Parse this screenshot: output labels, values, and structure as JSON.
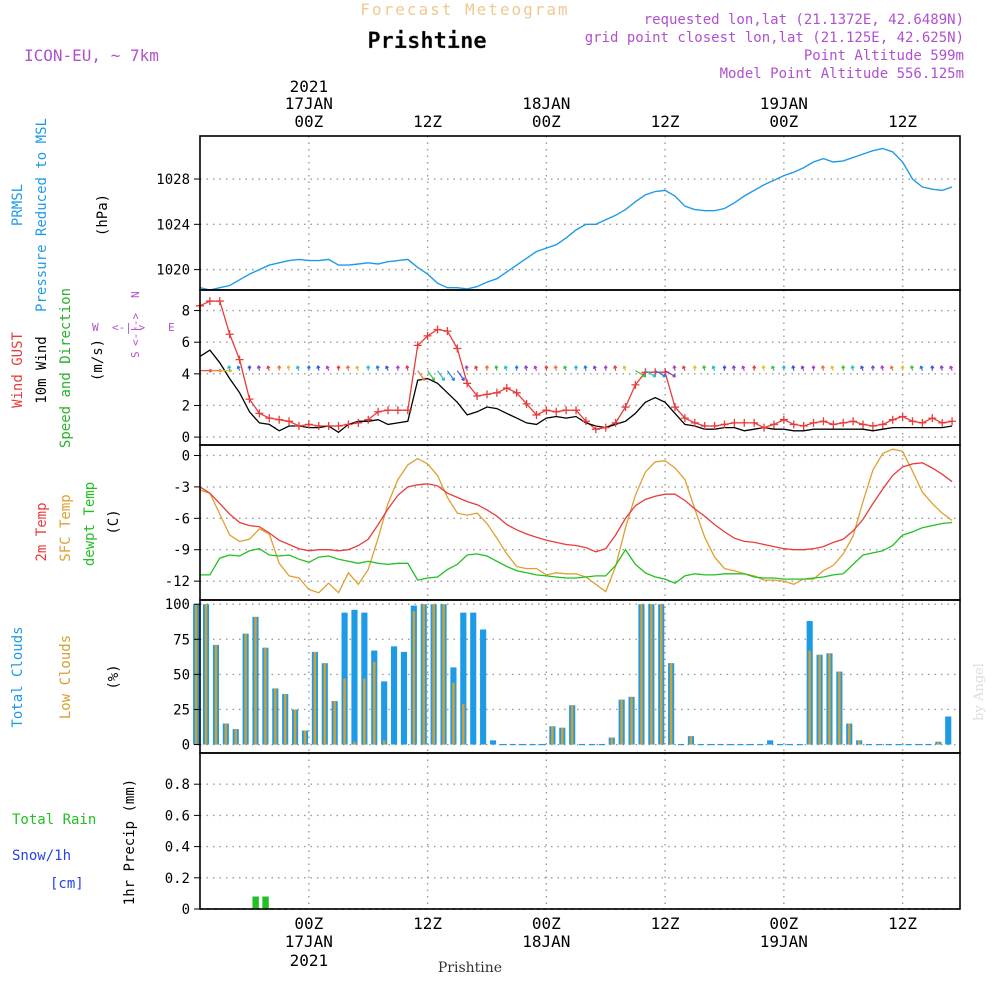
{
  "header": {
    "subtitle": "Forecast Meteogram",
    "title": "Prishtine",
    "model": "ICON-EU, ~ 7km",
    "requested": "requested lon,lat (21.1372E, 42.6489N)",
    "gridpoint": "grid point closest lon,lat (21.125E, 42.625N)",
    "point_alt": "Point Altitude 599m",
    "model_alt": "Model Point Altitude 556.125m",
    "footer_station": "Prishtine",
    "credit": "by Angel"
  },
  "time_axis": {
    "top_labels": [
      {
        "line0": "2021",
        "line1": "17JAN",
        "line2": "00Z",
        "h": 18
      },
      {
        "line0": "",
        "line1": "",
        "line2": "12Z",
        "h": 30
      },
      {
        "line0": "",
        "line1": "18JAN",
        "line2": "00Z",
        "h": 42
      },
      {
        "line0": "",
        "line1": "",
        "line2": "12Z",
        "h": 54
      },
      {
        "line0": "",
        "line1": "19JAN",
        "line2": "00Z",
        "h": 66
      },
      {
        "line0": "",
        "line1": "",
        "line2": "12Z",
        "h": 78
      }
    ],
    "bottom_labels": [
      {
        "line0": "00Z",
        "line1": "17JAN",
        "line2": "2021",
        "h": 18
      },
      {
        "line0": "12Z",
        "line1": "",
        "line2": "",
        "h": 30
      },
      {
        "line0": "00Z",
        "line1": "18JAN",
        "line2": "",
        "h": 42
      },
      {
        "line0": "12Z",
        "line1": "",
        "line2": "",
        "h": 54
      },
      {
        "line0": "00Z",
        "line1": "19JAN",
        "line2": "",
        "h": 66
      },
      {
        "line0": "12Z",
        "line1": "",
        "line2": "",
        "h": 78
      }
    ]
  },
  "colors": {
    "pressure": "#1e9be6",
    "gust": "#e83c3c",
    "wind": "#000000",
    "wind_dir": "#2ab02a",
    "t2m": "#e83c3c",
    "tsfc": "#e0a030",
    "dewpt": "#22c022",
    "total_clouds": "#1e9be6",
    "low_clouds": "#d4a030",
    "rain": "#22c022",
    "snow": "#2244ee",
    "label_purple": "#b050d0"
  },
  "chart_data": [
    {
      "type": "line",
      "panel": "pressure",
      "ylabel_lines": [
        "PRMSL",
        "Pressure Reduced to MSL"
      ],
      "unit": "(hPa)",
      "yticks": [
        1020,
        1024,
        1028
      ],
      "ylim": [
        1018.2,
        1031.8
      ],
      "x_hours": [
        7,
        8,
        9,
        10,
        11,
        12,
        13,
        14,
        15,
        16,
        17,
        18,
        19,
        20,
        21,
        22,
        23,
        24,
        25,
        26,
        27,
        28,
        29,
        30,
        31,
        32,
        33,
        34,
        35,
        36,
        37,
        38,
        39,
        40,
        41,
        42,
        43,
        44,
        45,
        46,
        47,
        48,
        49,
        50,
        51,
        52,
        53,
        54,
        55,
        56,
        57,
        58,
        59,
        60,
        61,
        62,
        63,
        64,
        65,
        66,
        67,
        68,
        69,
        70,
        71,
        72,
        73,
        74,
        75,
        76,
        77,
        78,
        79,
        80,
        81,
        82,
        83
      ],
      "series": [
        {
          "values": [
            1018.4,
            1018.2,
            1018.4,
            1018.6,
            1019.1,
            1019.6,
            1020.0,
            1020.4,
            1020.6,
            1020.8,
            1020.9,
            1020.8,
            1020.8,
            1020.9,
            1020.4,
            1020.4,
            1020.5,
            1020.6,
            1020.5,
            1020.7,
            1020.8,
            1020.9,
            1020.2,
            1019.6,
            1018.8,
            1018.4,
            1018.4,
            1018.3,
            1018.5,
            1018.9,
            1019.2,
            1019.8,
            1020.4,
            1021.0,
            1021.6,
            1021.9,
            1022.2,
            1022.8,
            1023.5,
            1024.0,
            1024.0,
            1024.4,
            1024.8,
            1025.3,
            1026.0,
            1026.6,
            1026.9,
            1027.0,
            1026.5,
            1025.6,
            1025.3,
            1025.2,
            1025.2,
            1025.4,
            1025.9,
            1026.5,
            1027.0,
            1027.5,
            1027.9,
            1028.3,
            1028.6,
            1029.0,
            1029.5,
            1029.8,
            1029.5,
            1029.6,
            1029.9,
            1030.2,
            1030.5,
            1030.7,
            1030.4,
            1029.5,
            1028.0,
            1027.3,
            1027.1,
            1027.0,
            1027.3
          ]
        }
      ]
    },
    {
      "type": "line",
      "panel": "wind",
      "ylabel_lines": [
        "Wind GUST",
        "10m Wind",
        "Speed and Direction"
      ],
      "unit": "(m/s)",
      "compass": {
        "n": "N",
        "e": "E",
        "s": "S",
        "w": "W"
      },
      "yticks": [
        0,
        2,
        4,
        6,
        8
      ],
      "ylim": [
        -0.5,
        9.3
      ],
      "x_hours": [
        7,
        8,
        9,
        10,
        11,
        12,
        13,
        14,
        15,
        16,
        17,
        18,
        19,
        20,
        21,
        22,
        23,
        24,
        25,
        26,
        27,
        28,
        29,
        30,
        31,
        32,
        33,
        34,
        35,
        36,
        37,
        38,
        39,
        40,
        41,
        42,
        43,
        44,
        45,
        46,
        47,
        48,
        49,
        50,
        51,
        52,
        53,
        54,
        55,
        56,
        57,
        58,
        59,
        60,
        61,
        62,
        63,
        64,
        65,
        66,
        67,
        68,
        69,
        70,
        71,
        72,
        73,
        74,
        75,
        76,
        77,
        78,
        79,
        80,
        81,
        82,
        83
      ],
      "series": [
        {
          "name": "Wind GUST",
          "values": [
            8.3,
            8.6,
            8.6,
            6.5,
            4.9,
            2.4,
            1.5,
            1.2,
            1.1,
            1.0,
            0.7,
            0.8,
            0.7,
            0.7,
            0.7,
            0.8,
            0.9,
            1.1,
            1.6,
            1.7,
            1.7,
            1.7,
            5.8,
            6.4,
            6.8,
            6.7,
            5.6,
            3.4,
            2.6,
            2.7,
            2.8,
            3.1,
            2.8,
            2.1,
            1.4,
            1.7,
            1.6,
            1.7,
            1.7,
            1.0,
            0.5,
            0.6,
            0.9,
            1.9,
            3.3,
            4.1,
            4.1,
            4.1,
            1.9,
            1.2,
            0.9,
            0.7,
            0.7,
            0.8,
            0.9,
            0.9,
            0.9,
            0.6,
            0.8,
            1.1,
            0.8,
            0.7,
            0.9,
            1.0,
            0.8,
            0.9,
            1.0,
            0.8,
            0.7,
            0.8,
            1.1,
            1.3,
            1.0,
            0.9,
            1.2,
            0.9,
            1.0
          ]
        },
        {
          "name": "10m Wind",
          "values": [
            5.1,
            5.5,
            4.7,
            3.7,
            2.8,
            1.6,
            0.9,
            0.8,
            0.4,
            0.7,
            0.7,
            0.6,
            0.6,
            0.7,
            0.3,
            0.8,
            1.0,
            1.0,
            1.1,
            0.8,
            0.9,
            1.0,
            3.6,
            3.7,
            3.4,
            2.8,
            2.2,
            1.4,
            1.6,
            1.9,
            1.8,
            1.5,
            1.2,
            0.9,
            0.8,
            1.2,
            1.3,
            1.2,
            1.3,
            0.9,
            0.7,
            0.6,
            0.8,
            1.0,
            1.5,
            2.2,
            2.5,
            2.2,
            1.5,
            0.8,
            0.7,
            0.5,
            0.5,
            0.6,
            0.6,
            0.4,
            0.5,
            0.6,
            0.5,
            0.5,
            0.4,
            0.4,
            0.5,
            0.5,
            0.5,
            0.5,
            0.5,
            0.5,
            0.4,
            0.5,
            0.6,
            0.6,
            0.6,
            0.6,
            0.6,
            0.6,
            0.7
          ]
        }
      ]
    },
    {
      "type": "line",
      "panel": "temperature",
      "ylabel_lines": [
        "2m Temp",
        "SFC Temp",
        "dewpt Temp"
      ],
      "unit": "(C)",
      "yticks": [
        0,
        -3,
        -6,
        -9,
        -12
      ],
      "ylim": [
        -13.8,
        1.0
      ],
      "x_hours": [
        7,
        8,
        9,
        10,
        11,
        12,
        13,
        14,
        15,
        16,
        17,
        18,
        19,
        20,
        21,
        22,
        23,
        24,
        25,
        26,
        27,
        28,
        29,
        30,
        31,
        32,
        33,
        34,
        35,
        36,
        37,
        38,
        39,
        40,
        41,
        42,
        43,
        44,
        45,
        46,
        47,
        48,
        49,
        50,
        51,
        52,
        53,
        54,
        55,
        56,
        57,
        58,
        59,
        60,
        61,
        62,
        63,
        64,
        65,
        66,
        67,
        68,
        69,
        70,
        71,
        72,
        73,
        74,
        75,
        76,
        77,
        78,
        79,
        80,
        81,
        82,
        83
      ],
      "series": [
        {
          "name": "2m Temp",
          "values": [
            -3.0,
            -3.6,
            -4.6,
            -5.6,
            -6.4,
            -6.7,
            -6.8,
            -7.4,
            -8.1,
            -8.5,
            -8.9,
            -9.1,
            -9.0,
            -9.0,
            -9.1,
            -9.0,
            -8.6,
            -8.0,
            -6.6,
            -5.1,
            -3.8,
            -3.0,
            -2.8,
            -2.7,
            -2.9,
            -3.6,
            -4.0,
            -4.4,
            -4.7,
            -5.2,
            -5.8,
            -6.6,
            -7.1,
            -7.5,
            -7.8,
            -8.1,
            -8.3,
            -8.5,
            -8.6,
            -8.8,
            -9.2,
            -8.9,
            -7.6,
            -6.0,
            -4.8,
            -4.2,
            -3.9,
            -3.7,
            -3.7,
            -4.3,
            -5.1,
            -5.8,
            -6.6,
            -7.3,
            -7.9,
            -8.2,
            -8.3,
            -8.5,
            -8.7,
            -8.9,
            -9.0,
            -9.0,
            -8.9,
            -8.7,
            -8.3,
            -8.0,
            -7.2,
            -6.1,
            -4.6,
            -3.2,
            -1.9,
            -1.1,
            -0.8,
            -0.7,
            -1.2,
            -1.8,
            -2.5
          ]
        },
        {
          "name": "SFC Temp",
          "values": [
            -3.3,
            -3.6,
            -5.6,
            -7.6,
            -8.2,
            -8.0,
            -7.0,
            -7.5,
            -10.3,
            -11.5,
            -11.7,
            -12.8,
            -13.1,
            -12.2,
            -13.1,
            -11.2,
            -12.3,
            -10.9,
            -7.9,
            -4.6,
            -2.3,
            -0.9,
            -0.3,
            -0.8,
            -1.9,
            -4.0,
            -5.5,
            -5.7,
            -5.5,
            -6.5,
            -7.9,
            -9.4,
            -10.6,
            -10.8,
            -10.8,
            -11.4,
            -11.2,
            -11.3,
            -11.3,
            -11.6,
            -12.3,
            -13.0,
            -10.6,
            -6.9,
            -3.8,
            -1.6,
            -0.6,
            -0.5,
            -1.2,
            -2.3,
            -5.1,
            -7.8,
            -9.7,
            -10.8,
            -11.0,
            -11.3,
            -11.5,
            -11.9,
            -11.9,
            -12.0,
            -12.3,
            -11.8,
            -11.8,
            -11.0,
            -10.5,
            -9.4,
            -7.7,
            -4.4,
            -1.4,
            0.2,
            0.6,
            0.4,
            -1.5,
            -3.5,
            -4.6,
            -5.5,
            -6.2
          ]
        },
        {
          "name": "dewpt Temp",
          "values": [
            -11.4,
            -11.4,
            -9.8,
            -9.5,
            -9.6,
            -9.1,
            -8.9,
            -9.5,
            -9.6,
            -9.5,
            -9.9,
            -10.2,
            -9.7,
            -9.6,
            -9.9,
            -10.1,
            -10.3,
            -10.1,
            -10.3,
            -10.4,
            -10.3,
            -10.3,
            -11.9,
            -11.7,
            -11.6,
            -10.9,
            -10.4,
            -9.5,
            -9.4,
            -9.6,
            -10.1,
            -10.6,
            -11.0,
            -11.2,
            -11.4,
            -11.5,
            -11.6,
            -11.7,
            -11.7,
            -11.6,
            -11.5,
            -11.5,
            -10.5,
            -9.0,
            -10.4,
            -11.2,
            -11.6,
            -11.8,
            -12.2,
            -11.5,
            -11.3,
            -11.4,
            -11.4,
            -11.3,
            -11.3,
            -11.3,
            -11.6,
            -11.7,
            -11.7,
            -11.8,
            -11.8,
            -11.8,
            -11.7,
            -11.6,
            -11.4,
            -11.3,
            -10.4,
            -9.5,
            -9.3,
            -9.1,
            -8.6,
            -7.6,
            -7.3,
            -6.9,
            -6.7,
            -6.5,
            -6.4
          ]
        }
      ]
    },
    {
      "type": "bar",
      "panel": "clouds",
      "ylabel_lines": [
        "Total Clouds",
        "Low Clouds"
      ],
      "unit": "(%)",
      "yticks": [
        0,
        25,
        50,
        75,
        100
      ],
      "ylim": [
        -6,
        103
      ],
      "x_hours": [
        7,
        8,
        9,
        10,
        11,
        12,
        13,
        14,
        15,
        16,
        17,
        18,
        19,
        20,
        21,
        22,
        23,
        24,
        25,
        26,
        27,
        28,
        29,
        30,
        31,
        32,
        33,
        34,
        35,
        36,
        37,
        38,
        39,
        40,
        41,
        42,
        43,
        44,
        45,
        46,
        47,
        48,
        49,
        50,
        51,
        52,
        53,
        54,
        55,
        56,
        57,
        58,
        59,
        60,
        61,
        62,
        63,
        64,
        65,
        66,
        67,
        68,
        69,
        70,
        71,
        72,
        73,
        74,
        75,
        76,
        77,
        78,
        79,
        80,
        81,
        82,
        83
      ],
      "series": [
        {
          "name": "Total Clouds",
          "values": [
            100,
            100,
            71,
            15,
            11,
            79,
            91,
            69,
            40,
            36,
            25,
            10,
            66,
            58,
            31,
            94,
            96,
            94,
            67,
            45,
            70,
            66,
            99,
            100,
            100,
            100,
            55,
            94,
            94,
            82,
            3,
            0,
            0,
            0,
            0,
            0,
            13,
            12,
            28,
            0,
            0,
            0,
            5,
            32,
            34,
            100,
            100,
            100,
            58,
            0,
            6,
            0,
            0,
            0,
            0,
            0,
            0,
            0,
            3,
            0,
            0,
            0,
            88,
            64,
            65,
            52,
            15,
            3,
            0,
            0,
            0,
            0,
            0,
            0,
            0,
            2,
            20
          ]
        },
        {
          "name": "Low Clouds",
          "values": [
            100,
            100,
            71,
            15,
            11,
            79,
            91,
            69,
            40,
            36,
            25,
            10,
            66,
            58,
            31,
            47,
            2,
            47,
            59,
            3,
            0,
            0,
            95,
            100,
            100,
            100,
            44,
            29,
            0,
            0,
            0,
            0,
            0,
            0,
            0,
            0,
            13,
            12,
            28,
            0,
            0,
            0,
            5,
            32,
            34,
            100,
            100,
            100,
            58,
            0,
            6,
            0,
            0,
            0,
            0,
            0,
            0,
            0,
            0,
            0,
            0,
            0,
            67,
            64,
            65,
            52,
            15,
            3,
            0,
            0,
            0,
            0,
            0,
            0,
            0,
            2,
            0
          ]
        }
      ]
    },
    {
      "type": "bar",
      "panel": "precip",
      "ylabel_lines": [
        "Total  Rain",
        "Snow/1h",
        "[cm]"
      ],
      "unit": "1hr Precip (mm)",
      "yticks": [
        0,
        0.2,
        0.4,
        0.6,
        0.8
      ],
      "ytick_labels": [
        "0",
        "0.2",
        "0.4",
        "0.6",
        "0.8"
      ],
      "ylim": [
        0,
        1.0
      ],
      "series": [
        {
          "name": "Total Rain",
          "x_hours": [
            13,
            14
          ],
          "values": [
            0.08,
            0.08
          ]
        }
      ]
    }
  ]
}
